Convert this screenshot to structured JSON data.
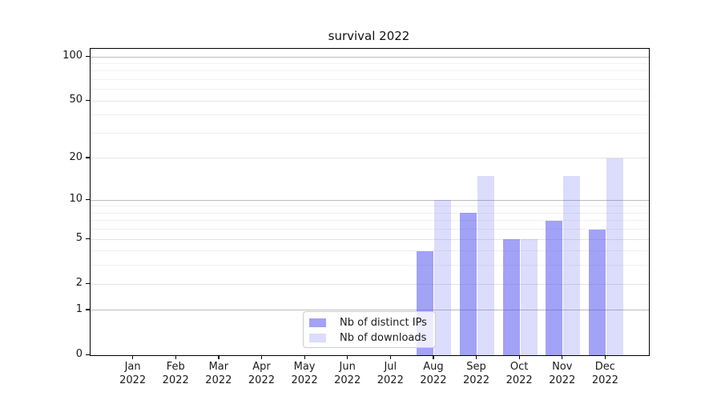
{
  "chart_data": {
    "type": "bar",
    "title": "survival 2022",
    "y_scale": "log1p",
    "ylim": [
      0,
      100
    ],
    "grid": "on",
    "legend_position": "bottom-center",
    "categories": [
      {
        "month": "Jan",
        "year": "2022"
      },
      {
        "month": "Feb",
        "year": "2022"
      },
      {
        "month": "Mar",
        "year": "2022"
      },
      {
        "month": "Apr",
        "year": "2022"
      },
      {
        "month": "May",
        "year": "2022"
      },
      {
        "month": "Jun",
        "year": "2022"
      },
      {
        "month": "Jul",
        "year": "2022"
      },
      {
        "month": "Aug",
        "year": "2022"
      },
      {
        "month": "Sep",
        "year": "2022"
      },
      {
        "month": "Oct",
        "year": "2022"
      },
      {
        "month": "Nov",
        "year": "2022"
      },
      {
        "month": "Dec",
        "year": "2022"
      }
    ],
    "series": [
      {
        "name": "Nb of distinct IPs",
        "color": "rgba(80,80,240,0.53)",
        "values": [
          0,
          0,
          0,
          0,
          0,
          0,
          0,
          4,
          8,
          5,
          7,
          6
        ]
      },
      {
        "name": "Nb of downloads",
        "color": "rgba(80,80,240,0.2)",
        "values": [
          0,
          0,
          0,
          0,
          0,
          0,
          0,
          10,
          15,
          5,
          15,
          20
        ]
      }
    ],
    "y_ticks": [
      {
        "value": 0,
        "label": "0"
      },
      {
        "value": 1,
        "label": "1"
      },
      {
        "value": 2,
        "label": "2"
      },
      {
        "value": 5,
        "label": "5"
      },
      {
        "value": 10,
        "label": "10"
      },
      {
        "value": 20,
        "label": "20"
      },
      {
        "value": 50,
        "label": "50"
      },
      {
        "value": 100,
        "label": "100"
      }
    ],
    "y_major_values": [
      1,
      10,
      100
    ],
    "y_minor_ticks": [
      3,
      4,
      6,
      7,
      8,
      9,
      30,
      40,
      60,
      70,
      80,
      90
    ]
  }
}
